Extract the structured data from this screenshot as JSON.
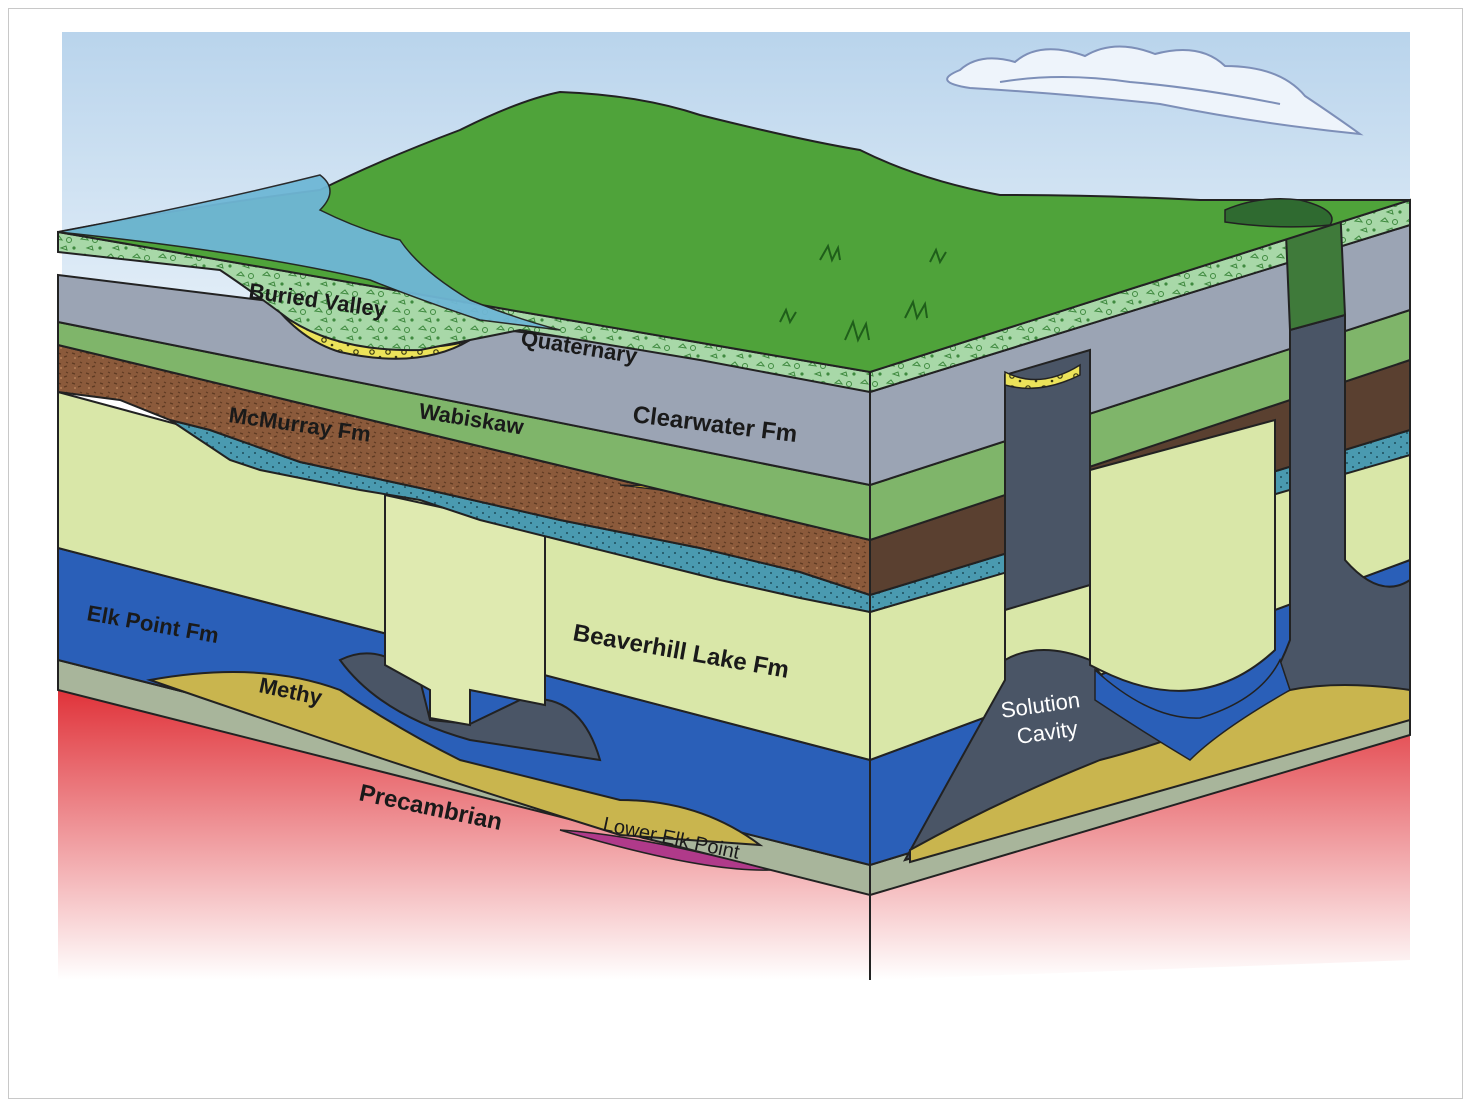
{
  "labels": {
    "buried_valley": "Buried Valley",
    "quaternary": "Quaternary",
    "wabiskaw": "Wabiskaw",
    "mcmurray": "McMurray Fm",
    "clearwater": "Clearwater Fm",
    "elk_point": "Elk Point Fm",
    "beaverhill": "Beaverhill Lake Fm",
    "methy": "Methy",
    "precambrian": "Precambrian",
    "lower_elk_point": "Lower Elk Point",
    "solution_line1": "Solution",
    "solution_line2": "Cavity"
  },
  "colors": {
    "sky": "#cfe3f3",
    "surface": "#4fa33a",
    "lake": "#6fb7d6",
    "quaternary": "#a6d6a4",
    "clearwater": "#9ba4b4",
    "wabiskaw": "#7fb56a",
    "mcmurray": "#8a5a3a",
    "limestone": "#d9e7a8",
    "blue": "#2a5fb8",
    "teal": "#3a8fa0",
    "methy": "#c8b550",
    "precambrian": "#e45a5a",
    "cavity": "#4a5566",
    "oil": "#f2c22c"
  }
}
